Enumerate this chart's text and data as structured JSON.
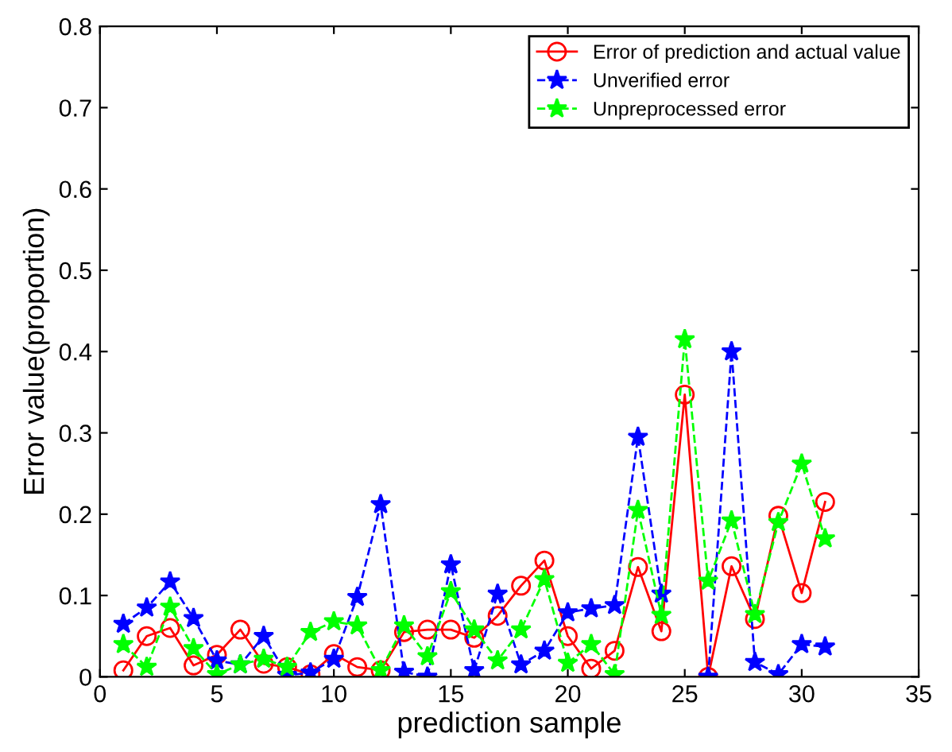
{
  "chart_data": {
    "type": "line",
    "xlabel": "prediction sample",
    "ylabel": "Error value(proportion)",
    "x": [
      1,
      2,
      3,
      4,
      5,
      6,
      7,
      8,
      9,
      10,
      11,
      12,
      13,
      14,
      15,
      16,
      17,
      18,
      19,
      20,
      21,
      22,
      23,
      24,
      25,
      26,
      27,
      28,
      29,
      30,
      31
    ],
    "series": [
      {
        "name": "Error of prediction and actual value",
        "color": "#ff0000",
        "marker": "circle",
        "line_style": "solid",
        "values": [
          0.008,
          0.05,
          0.06,
          0.014,
          0.027,
          0.058,
          0.016,
          0.012,
          0.003,
          0.028,
          0.012,
          0.008,
          0.055,
          0.058,
          0.058,
          0.048,
          0.075,
          0.112,
          0.143,
          0.05,
          0.01,
          0.032,
          0.135,
          0.056,
          0.347,
          0.0,
          0.136,
          0.071,
          0.198,
          0.103,
          0.215
        ]
      },
      {
        "name": "Unverified error",
        "color": "#0000ff",
        "marker": "star",
        "line_style": "dashed",
        "values": [
          0.065,
          0.085,
          0.117,
          0.072,
          0.02,
          0.015,
          0.05,
          0.002,
          0.005,
          0.022,
          0.098,
          0.212,
          0.006,
          0.0,
          0.138,
          0.008,
          0.102,
          0.015,
          0.032,
          0.079,
          0.084,
          0.088,
          0.295,
          0.102,
          null,
          0.0,
          0.4,
          0.018,
          0.003,
          0.04,
          0.037
        ]
      },
      {
        "name": "Unpreprocessed error",
        "color": "#00ff00",
        "marker": "star",
        "line_style": "dashed",
        "values": [
          0.04,
          0.012,
          0.086,
          0.035,
          0.003,
          0.015,
          0.022,
          0.012,
          0.055,
          0.068,
          0.063,
          0.008,
          0.063,
          0.025,
          0.105,
          0.058,
          0.02,
          0.058,
          0.12,
          0.017,
          0.04,
          0.003,
          0.205,
          0.076,
          0.415,
          0.118,
          0.192,
          0.077,
          0.19,
          0.262,
          0.17
        ]
      }
    ],
    "xlim": [
      0,
      35
    ],
    "xticks": [
      0,
      5,
      10,
      15,
      20,
      25,
      30,
      35
    ],
    "ylim": [
      0,
      0.8
    ],
    "yticks": [
      0,
      0.1,
      0.2,
      0.3,
      0.4,
      0.5,
      0.6,
      0.7,
      0.8
    ],
    "grid": false,
    "legend": "top right"
  }
}
